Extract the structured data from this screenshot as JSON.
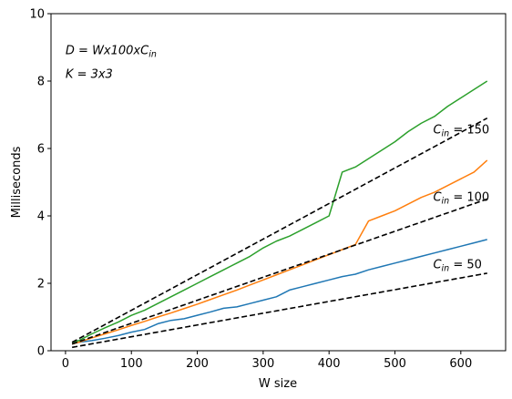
{
  "chart_data": {
    "type": "line",
    "title": "",
    "xlabel": "W size",
    "ylabel": "Milliseconds",
    "xlim": [
      -22,
      668
    ],
    "ylim": [
      0,
      10
    ],
    "xticks": [
      0,
      100,
      200,
      300,
      400,
      500,
      600
    ],
    "yticks": [
      0,
      2,
      4,
      6,
      8,
      10
    ],
    "grid": false,
    "annotations": [
      {
        "id": "formula-d",
        "parts": [
          "D = Wx100xC",
          "in"
        ],
        "x": 0,
        "y": 8.8
      },
      {
        "id": "formula-k",
        "parts": [
          "K = 3x3"
        ],
        "x": 0,
        "y": 8.1
      },
      {
        "id": "label-cin-150",
        "parts": [
          "C",
          "in",
          " = 150"
        ],
        "x": 558,
        "y": 6.45
      },
      {
        "id": "label-cin-100",
        "parts": [
          "C",
          "in",
          " = 100"
        ],
        "x": 558,
        "y": 4.45
      },
      {
        "id": "label-cin-50",
        "parts": [
          "C",
          "in",
          " = 50"
        ],
        "x": 558,
        "y": 2.45
      }
    ],
    "series": [
      {
        "color": "#1f77b4",
        "style": "solid",
        "x": [
          10,
          20,
          40,
          60,
          80,
          100,
          120,
          140,
          160,
          180,
          200,
          220,
          240,
          260,
          280,
          300,
          320,
          340,
          360,
          380,
          400,
          420,
          440,
          460,
          480,
          500,
          520,
          540,
          560,
          580,
          600,
          620,
          640
        ],
        "y": [
          0.2,
          0.25,
          0.3,
          0.37,
          0.45,
          0.55,
          0.63,
          0.8,
          0.9,
          0.95,
          1.05,
          1.15,
          1.26,
          1.3,
          1.4,
          1.5,
          1.6,
          1.8,
          1.9,
          2.0,
          2.1,
          2.2,
          2.27,
          2.4,
          2.5,
          2.6,
          2.7,
          2.8,
          2.9,
          3.0,
          3.1,
          3.2,
          3.3
        ]
      },
      {
        "color": "#ff7f0e",
        "style": "solid",
        "x": [
          10,
          20,
          40,
          60,
          80,
          100,
          120,
          140,
          160,
          180,
          200,
          220,
          240,
          260,
          280,
          300,
          320,
          340,
          360,
          380,
          400,
          420,
          440,
          460,
          480,
          500,
          520,
          540,
          560,
          580,
          600,
          620,
          640
        ],
        "y": [
          0.2,
          0.25,
          0.38,
          0.5,
          0.62,
          0.75,
          0.87,
          1.0,
          1.12,
          1.25,
          1.38,
          1.52,
          1.66,
          1.8,
          1.95,
          2.1,
          2.25,
          2.4,
          2.55,
          2.7,
          2.85,
          3.0,
          3.15,
          3.85,
          4.0,
          4.15,
          4.35,
          4.55,
          4.7,
          4.9,
          5.1,
          5.3,
          5.65
        ]
      },
      {
        "color": "#2ca02c",
        "style": "solid",
        "x": [
          10,
          20,
          40,
          60,
          80,
          100,
          120,
          140,
          160,
          180,
          200,
          220,
          240,
          260,
          280,
          300,
          320,
          340,
          360,
          380,
          400,
          420,
          440,
          460,
          480,
          500,
          520,
          540,
          560,
          580,
          600,
          620,
          640
        ],
        "y": [
          0.25,
          0.3,
          0.5,
          0.68,
          0.85,
          1.05,
          1.2,
          1.4,
          1.6,
          1.8,
          2.0,
          2.2,
          2.4,
          2.6,
          2.8,
          3.05,
          3.25,
          3.4,
          3.6,
          3.8,
          4.0,
          5.3,
          5.45,
          5.7,
          5.95,
          6.2,
          6.5,
          6.75,
          6.95,
          7.25,
          7.5,
          7.75,
          8.0
        ]
      },
      {
        "color": "#000000",
        "style": "dashed",
        "x": [
          10,
          640
        ],
        "y": [
          0.1,
          2.3
        ]
      },
      {
        "color": "#000000",
        "style": "dashed",
        "x": [
          10,
          640
        ],
        "y": [
          0.2,
          4.5
        ]
      },
      {
        "color": "#000000",
        "style": "dashed",
        "x": [
          10,
          640
        ],
        "y": [
          0.25,
          6.9
        ]
      }
    ]
  }
}
